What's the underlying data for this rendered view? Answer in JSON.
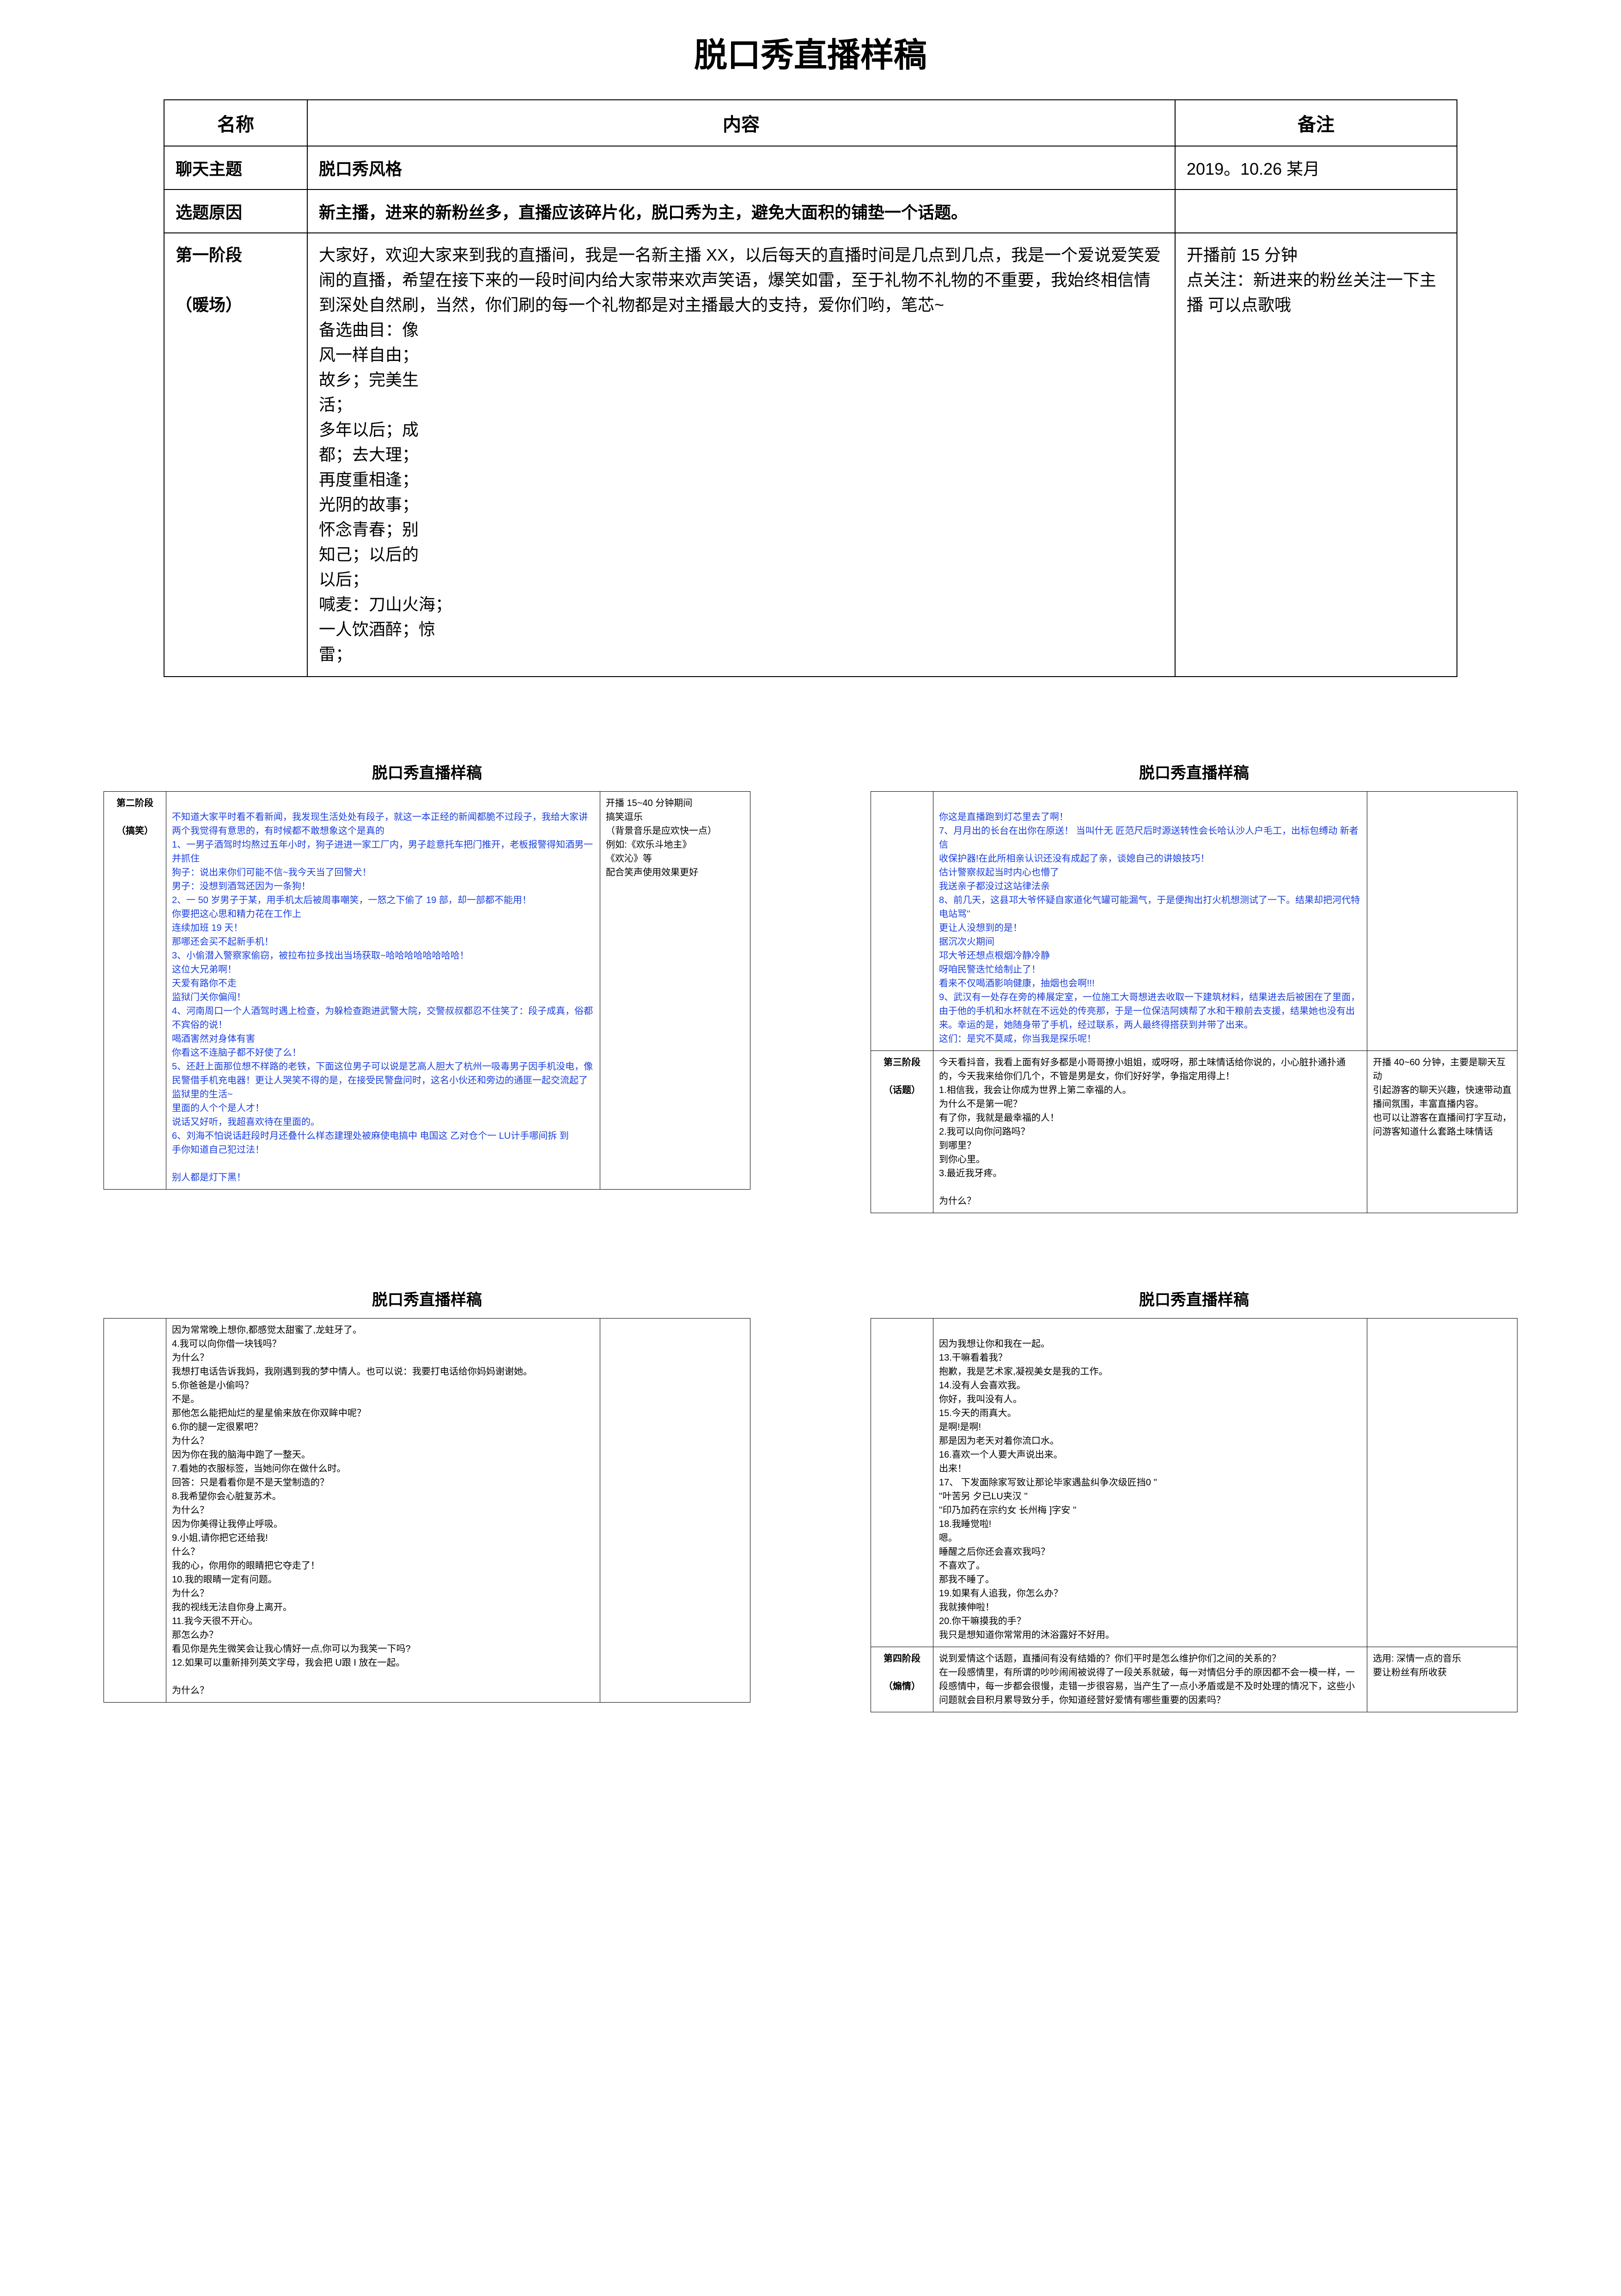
{
  "main": {
    "title": "脱口秀直播样稿",
    "headers": {
      "name": "名称",
      "content": "内容",
      "remark": "备注"
    },
    "rows": [
      {
        "name": "聊天主题",
        "content": "脱口秀风格",
        "remark": "2019。10.26 某月"
      },
      {
        "name": "选题原因",
        "content": "新主播，进来的新粉丝多，直播应该碎片化，脱口秀为主，避免大面积的铺垫一个话题。",
        "remark": ""
      },
      {
        "name": "第一阶段\n\n（暖场）",
        "content": "大家好，欢迎大家来到我的直播间，我是一名新主播 XX，以后每天的直播时间是几点到几点，我是一个爱说爱笑爱闹的直播，希望在接下来的一段时间内给大家带来欢声笑语，爆笑如雷，至于礼物不礼物的不重要，我始终相信情到深处自然刷，当然，你们刷的每一个礼物都是对主播最大的支持，爱你们哟，笔芯~\n备选曲目：像\n风一样自由；\n故乡；完美生\n活；\n多年以后；成\n都；去大理；\n再度重相逢；\n光阴的故事；\n怀念青春；别\n知己；以后的\n以后；\n喊麦：刀山火海；\n一人饮酒醉；惊\n雷；",
        "remark": "开播前 15 分钟\n点关注：新进来的粉丝关注一下主播 可以点歌哦"
      }
    ]
  },
  "page2": {
    "title": "脱口秀直播样稿",
    "label": "第二阶段\n\n（搞笑）",
    "content": "不知道大家平时看不看新闻，我发现生活处处有段子，就这一本正经的新闻都脆不过段子，我给大家讲两个我觉得有意思的，有时候都不敢想象这个是真的\n    1、一男子酒驾时均熬过五年小时，狗子进进一家工厂内，男子趁意托车把门推开，老板报警得知酒男一并抓住\n    狗子：说出来你们可能不信~我今天当了回警犬！\n    男子：没想到酒驾还因为一条狗！\n    2、一 50 岁男子于某，用手机太后被周事嘲笑，一怒之下偷了 19 部，却一部都不能用！\n        你要把这心思和精力花在工作上\n        连续加班 19 天！\n        那哪还会买不起新手机！\n    3、小偷潜入警察家偷窃，被拉布拉多找出当场获取~哈哈哈哈哈哈哈哈！\n    这位大兄弟啊！\n        天爱有路你不走\n        监狱门关你偏闯！\n    4、河南周口一个人酒驾时遇上检查，为躲检查跑进武警大院，交警叔叔都忍不住笑了：段子成真，俗都不宾俗的说！\n    喝酒害然对身体有害\n    你看这不连脑子都不好使了么！\n    5、还赶上面那位想不样路的老铁，下面这位男子可以说是艺高人胆大了杭州一吸毒男子因手机没电，像民警借手机充电器！更让人哭笑不得的是，在接受民警盘问时，这名小伙还和旁边的通匪一起交流起了监狱里的生活~\n        里面的人个个是人才！\n        说话又好听，我超喜欢待在里面的。\n    6、刘海不怕说话赶段时月还叠什么样态建理处被麻使电搞中 电国这  乙对仓个一   LU计手哪间拆 到\n    手你知道自己犯过法！\n\n        别人都是灯下黑！",
    "remark": "开播 15~40 分钟期间\n搞笑逗乐\n（背景音乐是应欢快一点）\n例如:《欢乐斗地主》\n《欢沁》等\n配合笑声使用效果更好"
  },
  "page3": {
    "title": "脱口秀直播样稿",
    "sectionA": {
      "content": "        你这是直播跑到灯芯里去了啊！\n    7、月月出的长台在出你在原送！     当叫什无 匠范尺后时源送转性会长哈认沙人户毛工，出标包缚动 新者信\n收保护器!在此所相亲认识还没有成起了亲，谈媳自己的讲娘技巧！\n        估计警察叔起当时内心也懵了\n        我送亲子都没过这站律法亲\n    8、前几天，这县邛大爷怀疑自家道化气罐可能漏气，于是便掏出打火机想测试了一下。结果却把河代特电站骂''\n        更让人没想到的是！\n        据沉次火期间\n        邛大爷还想点根烟冷静冷静\n        呀咱民警迭忙给制止了！\n        看来不仅喝酒影响健康，抽烟也会啊!!!\n    9、武汉有一处存在旁的棒展定室，一位施工大哥想进去收取一下建筑材料，结果进去后被困在了里面，由于他的手机和水杯就在不远处的传亮那，于是一位保洁阿姨帮了水和干粮前去支援，结果她也没有出来。幸运的是，她随身带了手机，经过联系，两人最终得搭获到并带了出来。\n            这们：是究不莫咸，你当我是探乐呢！",
      "label": "",
      "remark": ""
    },
    "sectionB": {
      "label": "第三阶段\n\n（话题）",
      "content": "今天看抖音，我看上面有好多都是小哥哥撩小姐姐，或呀呀，那土味情话给你说的，小心脏扑通扑通的，今天我来给你们几个，不管是男是女，你们好好学，争指定用得上！\n1.相信我，我会让你成为世界上第二幸福的人。\n为什么不是第一呢？\n有了你，我就是最幸福的人！\n2.我可以向你问路吗？\n到哪里？\n到你心里。\n3.最近我牙疼。\n\n为什么？",
      "remark": "开播 40~60 分钟，主要是聊天互动\n引起游客的聊天兴趣，快速带动直播间氛围，丰富直播内容。\n也可以让游客在直播间打字互动，问游客知道什么套路土味情话"
    }
  },
  "page4": {
    "title": "脱口秀直播样稿",
    "content": "因为常常晚上想你,都感觉太甜蜜了,龙蛀牙了。\n4.我可以向你借一块钱吗？\n为什么？\n我想打电话告诉我妈，我刚遇到我的梦中情人。也可以说：我要打电话给你妈妈谢谢她。\n5.你爸爸是小偷吗？\n不是。\n那他怎么能把灿烂的星星偷来放在你双眸中呢？\n6.你的腿一定很累吧？\n为什么？\n因为你在我的脑海中跑了一整天。\n7.看她的衣服标签，当她问你在做什么时。\n回答：只是看看你是不是天堂制造的？\n8.我希望你会心脏复苏术。\n为什么？\n因为你美得让我停止呼吸。\n9.小姐,请你把它还给我!\n什么？\n我的心，你用你的眼睛把它夺走了！\n10.我的眼睛一定有问题。\n为什么？\n我的视线无法自你身上离开。\n11.我今天很不开心。\n那怎么办？\n看见你是先生微笑会让我心情好一点,你可以为我笑一下吗?\n12.如果可以重新排列英文字母，我会把 U跟 I 放在一起。\n\n为什么？"
  },
  "page5": {
    "title": "脱口秀直播样稿",
    "sectionA": {
      "content": "因为我想让你和我在一起。\n13.干嘛看着我？\n抱歉，我是艺术家,凝视美女是我的工作。\n14.没有人会喜欢我。\n你好，我叫没有人。\n15.今天的雨真大。\n是啊!是啊!\n那是因为老天对着你流口水。\n16.喜欢一个人要大声说出来。\n出来！\n17、 下发面除家写致让那论毕家遇盐纠争次级匠挡0 ''\n ''叶苦另 夕已LU夹汉 ''\n   ''印乃加药在宗约女   长州梅 ]字安 ''\n18.我睡觉啦!\n嗯。\n睡醒之后你还会喜欢我吗？\n不喜欢了。\n那我不睡了。\n19.如果有人追我，你怎么办？\n我就揍伸啦！\n20.你干嘛摸我的手？\n我只是想知道你常常用的沐浴露好不好用。"
    },
    "sectionB": {
      "label": "第四阶段\n\n（煽情）",
      "content": "说到爱情这个话题，直播间有没有结婚的？你们平时是怎么维护你们之间的关系的？\n在一段感情里，有所谓的吵吵闹闹被说得了一段关系就破，每一对情侣分手的原因都不会一模一样，一段感情中，每一步都会很慢，走错一步很容易，当产生了一点小矛盾或是不及时处理的情况下，这些小问题就会目积月累导致分手，你知道经营好爱情有哪些重要的因素吗？",
      "remark": "选用: 深情一点的音乐\n要让粉丝有所收获"
    }
  }
}
